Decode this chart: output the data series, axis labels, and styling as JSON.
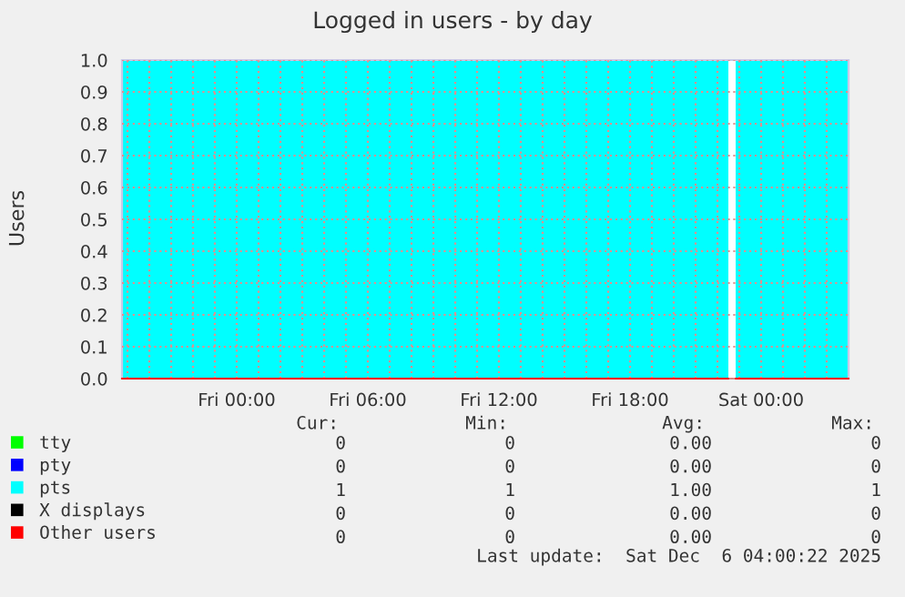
{
  "chart_data": {
    "type": "area",
    "title": "Logged in users - by day",
    "ylabel": "Users",
    "x": [
      "2025-12-04T18:45",
      "2025-12-05T22:30",
      "2025-12-05T22:40",
      "2025-12-05T22:50",
      "2025-12-06T04:00"
    ],
    "series": [
      {
        "name": "tty",
        "color": "#00ff00",
        "type": "line",
        "values": [
          null,
          null,
          null,
          null,
          null
        ]
      },
      {
        "name": "pty",
        "color": "#0000ff",
        "type": "line",
        "values": [
          null,
          null,
          null,
          null,
          null
        ]
      },
      {
        "name": "pts",
        "color": "#00ffff",
        "values": [
          1,
          1,
          null,
          1,
          1
        ]
      },
      {
        "name": "X displays",
        "color": "#000000",
        "type": "line",
        "values": [
          null,
          null,
          null,
          null,
          null
        ]
      },
      {
        "name": "Other users",
        "color": "#ff0000",
        "type": "line",
        "values": [
          0,
          0,
          null,
          0,
          0
        ]
      }
    ],
    "xlim": [
      "2025-12-04T18:45",
      "2025-12-06T04:00"
    ],
    "xticks": [
      {
        "value": "2025-12-04T19:00",
        "label": null
      },
      {
        "value": "2025-12-04T20:00",
        "label": null
      },
      {
        "value": "2025-12-04T21:00",
        "label": null
      },
      {
        "value": "2025-12-04T22:00",
        "label": null
      },
      {
        "value": "2025-12-04T23:00",
        "label": null
      },
      {
        "value": "2025-12-05T00:00",
        "label": "Fri 00:00"
      },
      {
        "value": "2025-12-05T01:00",
        "label": null
      },
      {
        "value": "2025-12-05T02:00",
        "label": null
      },
      {
        "value": "2025-12-05T03:00",
        "label": null
      },
      {
        "value": "2025-12-05T04:00",
        "label": null
      },
      {
        "value": "2025-12-05T05:00",
        "label": null
      },
      {
        "value": "2025-12-05T06:00",
        "label": "Fri 06:00"
      },
      {
        "value": "2025-12-05T07:00",
        "label": null
      },
      {
        "value": "2025-12-05T08:00",
        "label": null
      },
      {
        "value": "2025-12-05T09:00",
        "label": null
      },
      {
        "value": "2025-12-05T10:00",
        "label": null
      },
      {
        "value": "2025-12-05T11:00",
        "label": null
      },
      {
        "value": "2025-12-05T12:00",
        "label": "Fri 12:00"
      },
      {
        "value": "2025-12-05T13:00",
        "label": null
      },
      {
        "value": "2025-12-05T14:00",
        "label": null
      },
      {
        "value": "2025-12-05T15:00",
        "label": null
      },
      {
        "value": "2025-12-05T16:00",
        "label": null
      },
      {
        "value": "2025-12-05T17:00",
        "label": null
      },
      {
        "value": "2025-12-05T18:00",
        "label": "Fri 18:00"
      },
      {
        "value": "2025-12-05T19:00",
        "label": null
      },
      {
        "value": "2025-12-05T20:00",
        "label": null
      },
      {
        "value": "2025-12-05T21:00",
        "label": null
      },
      {
        "value": "2025-12-05T22:00",
        "label": null
      },
      {
        "value": "2025-12-05T23:00",
        "label": null
      },
      {
        "value": "2025-12-06T00:00",
        "label": "Sat 00:00"
      },
      {
        "value": "2025-12-06T01:00",
        "label": null
      },
      {
        "value": "2025-12-06T02:00",
        "label": null
      },
      {
        "value": "2025-12-06T03:00",
        "label": null
      }
    ],
    "ylim": [
      0,
      1
    ],
    "yticks": [
      {
        "value": 0,
        "label": "0.0"
      },
      {
        "value": 0.1,
        "label": "0.1"
      },
      {
        "value": 0.2,
        "label": "0.2"
      },
      {
        "value": 0.3,
        "label": "0.3"
      },
      {
        "value": 0.4,
        "label": "0.4"
      },
      {
        "value": 0.5,
        "label": "0.5"
      },
      {
        "value": 0.6,
        "label": "0.6"
      },
      {
        "value": 0.7,
        "label": "0.7"
      },
      {
        "value": 0.8,
        "label": "0.8"
      },
      {
        "value": 0.9,
        "label": "0.9"
      },
      {
        "value": 1,
        "label": "1.0"
      }
    ],
    "grid": true,
    "legend": "bottom left",
    "annotations": [
      "Cur:",
      "Min:",
      "Avg:",
      "Max:",
      "0",
      "0",
      "0.00",
      "0",
      "0",
      "0",
      "0.00",
      "0",
      "1",
      "1",
      "1.00",
      "1",
      "0",
      "0",
      "0.00",
      "0",
      "0",
      "0",
      "0.00",
      "0",
      "Last update:  Sat Dec  6 04:00:22 2025"
    ]
  }
}
